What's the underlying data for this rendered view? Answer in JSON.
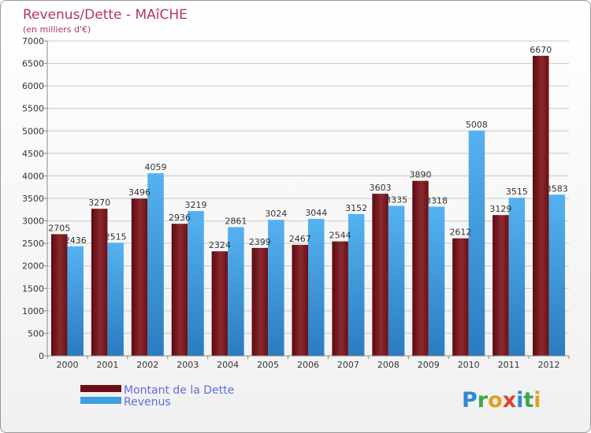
{
  "chart_data": {
    "type": "bar",
    "title": "Revenus/Dette - MAîCHE",
    "subtitle": "(en milliers d'€)",
    "categories": [
      "2000",
      "2001",
      "2002",
      "2003",
      "2004",
      "2005",
      "2006",
      "2007",
      "2008",
      "2009",
      "2010",
      "2011",
      "2012"
    ],
    "series": [
      {
        "name": "Montant de la Dette",
        "color": "#6e0e14",
        "values": [
          2705,
          3270,
          3496,
          2936,
          2324,
          2399,
          2467,
          2544,
          3603,
          3890,
          2612,
          3129,
          6670
        ]
      },
      {
        "name": "Revenus",
        "color": "#3d9ee0",
        "values": [
          2436,
          2515,
          4059,
          3219,
          2861,
          3024,
          3044,
          3152,
          3335,
          3318,
          5008,
          3515,
          3583
        ]
      }
    ],
    "ylim": [
      0,
      7000
    ],
    "yticks": [
      0,
      500,
      1000,
      1500,
      2000,
      2500,
      3000,
      3500,
      4000,
      4500,
      5000,
      5500,
      6000,
      6500,
      7000
    ],
    "grid": true,
    "legend_position": "bottom-left"
  },
  "logo": {
    "text": "Proxiti"
  }
}
